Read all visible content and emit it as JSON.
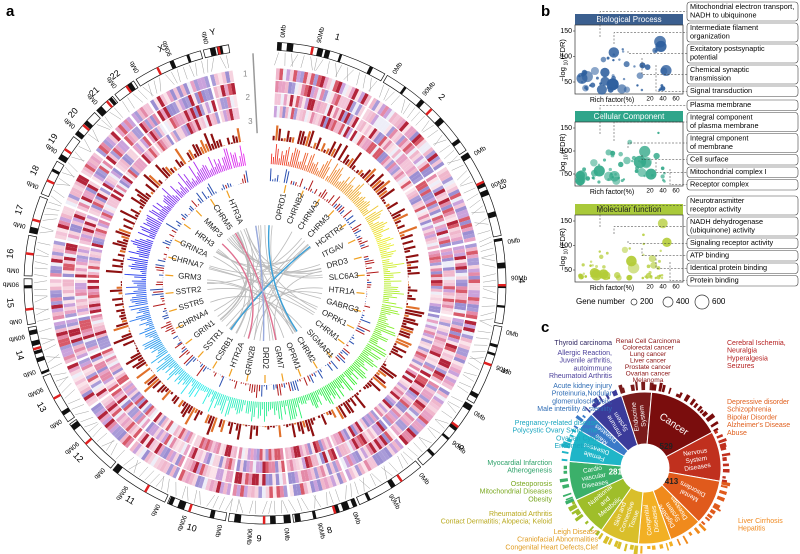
{
  "panel_a": {
    "label": "a",
    "chromosomes": [
      "1",
      "2",
      "3",
      "4",
      "5",
      "6",
      "7",
      "8",
      "9",
      "10",
      "11",
      "12",
      "13",
      "14",
      "15",
      "16",
      "17",
      "18",
      "19",
      "20",
      "21",
      "22",
      "X",
      "Y"
    ],
    "mb_labels": [
      "0Mb",
      "90Mb"
    ],
    "track_labels": [
      "1",
      "2",
      "3"
    ],
    "genes": [
      "OPRD1",
      "CHRNB2",
      "CHRNA3",
      "CHRM3",
      "HCRTR2",
      "ITGAV",
      "DRD3",
      "SLC6A3",
      "HTR1A",
      "GABRG3",
      "OPRK1",
      "CHRM1",
      "SIGMAR1",
      "CHRM2",
      "OPRM1",
      "GRM7",
      "DRD2",
      "GRIN2B",
      "HTR2A",
      "CSRB1",
      "SSTR1",
      "GRIN1",
      "CHRNA4",
      "SSTR5",
      "SSTR2",
      "GRM3",
      "CHRNA7",
      "GRIN2A",
      "HRH3",
      "MMP3",
      "CHRM5",
      "HTR3A"
    ]
  },
  "panel_b": {
    "label": "b",
    "y_label": {
      "main": "−log",
      "sub": "10",
      "tail": "(FDR)"
    },
    "x_label": "Rich factor(%)",
    "yticks": [
      "50",
      "100",
      "150"
    ],
    "xticks": [
      "20",
      "40",
      "60"
    ],
    "subplots": [
      {
        "title": "Biological Process",
        "terms": [
          [
            "Mitochondrial electron transport,",
            "NADH to ubiquinone"
          ],
          [
            "Intermediate filament",
            "organization"
          ],
          [
            "Excitatory postsynaptic",
            "potential"
          ],
          [
            "Chemical synaptic",
            "transmission"
          ],
          [
            "Signal transduction"
          ]
        ]
      },
      {
        "title": "Cellular Component",
        "terms": [
          [
            "Plasma membrane"
          ],
          [
            "Integral component",
            "of plasma membrane"
          ],
          [
            "Integral cmponent",
            "of membrane"
          ],
          [
            "Cell surface"
          ],
          [
            "Mitochondrial complex I"
          ],
          [
            "Receptor complex"
          ]
        ]
      },
      {
        "title": "Molecular function",
        "terms": [
          [
            "Neurotransmitter",
            "receptor activity"
          ],
          [
            "NADH dehydrogenase",
            "(ubiquinone) activity"
          ],
          [
            "Signaling receptor activity"
          ],
          [
            "ATP binding"
          ],
          [
            "Identical protein binding"
          ],
          [
            "Protein binding"
          ]
        ]
      }
    ],
    "legend": {
      "title": "Gene number",
      "sizes": [
        "200",
        "400",
        "600"
      ]
    }
  },
  "panel_c": {
    "label": "c",
    "counts": [
      "529",
      "413",
      "281"
    ],
    "segments": [
      [
        "Immune",
        "System"
      ],
      [
        "Endocrine",
        "System"
      ],
      [
        "Cancer"
      ],
      [
        "Nervous",
        "System",
        "Diseases"
      ],
      [
        "Mental",
        "Disorders"
      ],
      [
        "Digestive",
        "System",
        "Diseases"
      ],
      [
        "Congenital",
        "Diseases"
      ],
      [
        "Skin and",
        "Connective",
        "Tissue"
      ],
      [
        "Nutritional",
        "and",
        "Metabolic"
      ],
      [
        "Cardio",
        "vascular",
        "Diseases"
      ],
      [
        "Female",
        "Diseases"
      ],
      [
        "Male",
        "Diseases"
      ]
    ],
    "annotations": [
      [
        "Thyroid carcinoma"
      ],
      [
        "Allergic Reaction,",
        "Juvenile arthritis,",
        "autoimmune",
        "Rheumatoid Arthritis"
      ],
      [
        "Acute kidney injury",
        "Proteinuria,Nodular",
        "glomerulosclerosis,",
        "Male intertility & stenility"
      ],
      [
        "Pregnancy-related disease,",
        "Polycystic Ovary Syndrome,",
        "Ovarian Cysts",
        "Endometrioma"
      ],
      [
        "Myocardial Infarction",
        "Atherogenesis"
      ],
      [
        "Osteoporosis",
        "Mitochondrial Diseases",
        "Obesity"
      ],
      [
        "Rheumatoid Arthritis",
        "Contact Dermatitis; Alopecia; Keloid"
      ],
      [
        "Leigh Disease",
        "Craniofacial Abnormalities",
        "Congenital Heart Defects,Clef"
      ],
      [
        "Renal Cell Carcinoma",
        "Colorectal cancer",
        "Lung cancer",
        "Liver cancer",
        "Prostate cancer",
        "Ovarian cancer",
        "Melanoma"
      ],
      [
        "Cerebral Ischemia,",
        "Neuralgia",
        "Hyperalgesia",
        "Seizures"
      ],
      [
        "Depressive disorder",
        "Schizophrenia",
        "Bipolar Disorder",
        "Alzheimer's Disease",
        "Abuse"
      ],
      [
        "Liver Cirrhosis",
        "Hepatitis"
      ]
    ]
  }
}
